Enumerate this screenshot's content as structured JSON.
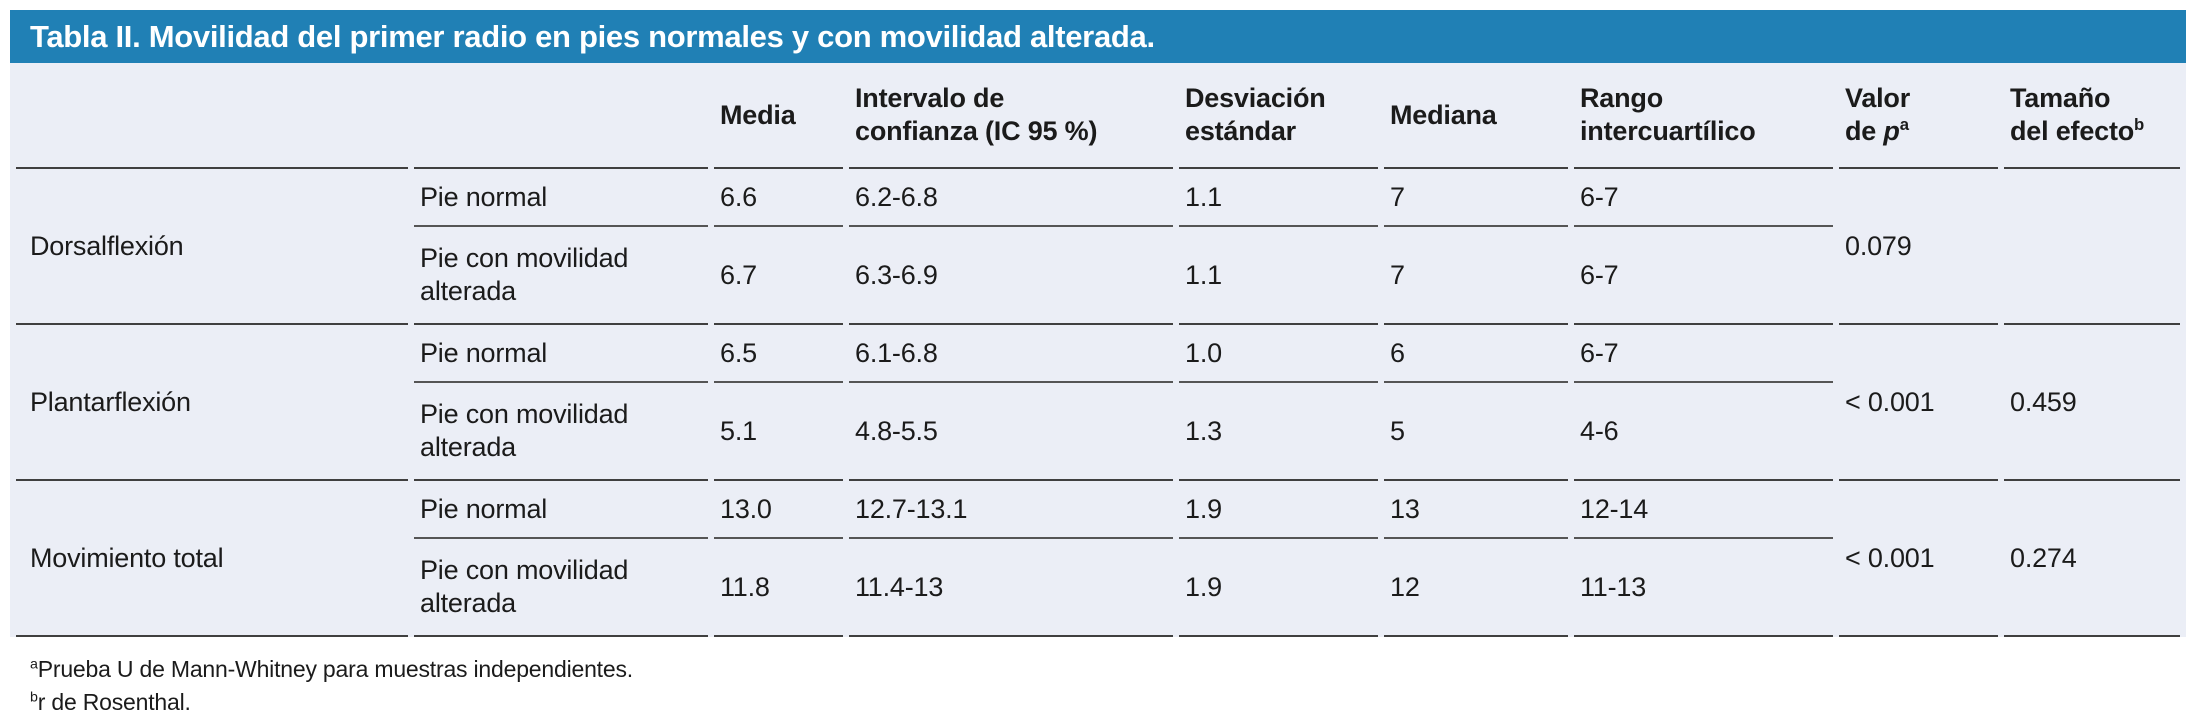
{
  "title": "Tabla II. Movilidad del primer radio en pies normales y con movilidad alterada.",
  "colors": {
    "title_bar_bg": "#2080b5",
    "title_text": "#ffffff",
    "table_bg": "#ebeef6",
    "rule": "#3f3f3f",
    "text": "#1b1b1b"
  },
  "header": {
    "media": "Media",
    "ic": {
      "line1": "Intervalo de",
      "line2": "confianza (IC 95 %)"
    },
    "sd": {
      "line1": "Desviación",
      "line2": "estándar"
    },
    "mediana": "Mediana",
    "rango": {
      "line1": "Rango",
      "line2": "intercuartílico"
    },
    "valor": {
      "line1": "Valor",
      "line2_prefix": "de ",
      "p": "p",
      "sup": "a"
    },
    "tamano": {
      "line1": "Tamaño",
      "line2": "del efecto",
      "sup": "b"
    }
  },
  "groups": [
    {
      "label": "Dorsalflexión",
      "rows": [
        {
          "cond": "Pie normal",
          "media": "6.6",
          "ic": "6.2-6.8",
          "sd": "1.1",
          "mediana": "7",
          "rango": "6-7"
        },
        {
          "cond": "Pie con movilidad alterada",
          "media": "6.7",
          "ic": "6.3-6.9",
          "sd": "1.1",
          "mediana": "7",
          "rango": "6-7"
        }
      ],
      "p": "0.079",
      "effect": ""
    },
    {
      "label": "Plantarflexión",
      "rows": [
        {
          "cond": "Pie normal",
          "media": "6.5",
          "ic": "6.1-6.8",
          "sd": "1.0",
          "mediana": "6",
          "rango": "6-7"
        },
        {
          "cond": "Pie con movilidad alterada",
          "media": "5.1",
          "ic": "4.8-5.5",
          "sd": "1.3",
          "mediana": "5",
          "rango": "4-6"
        }
      ],
      "p": "< 0.001",
      "effect": "0.459"
    },
    {
      "label": "Movimiento total",
      "rows": [
        {
          "cond": "Pie normal",
          "media": "13.0",
          "ic": "12.7-13.1",
          "sd": "1.9",
          "mediana": "13",
          "rango": "12-14"
        },
        {
          "cond": "Pie con movilidad alterada",
          "media": "11.8",
          "ic": "11.4-13",
          "sd": "1.9",
          "mediana": "12",
          "rango": "11-13"
        }
      ],
      "p": "< 0.001",
      "effect": "0.274"
    }
  ],
  "footnotes": [
    {
      "sup": "a",
      "text": "Prueba U de Mann-Whitney para muestras independientes."
    },
    {
      "sup": "b",
      "text": "r de Rosenthal."
    }
  ]
}
